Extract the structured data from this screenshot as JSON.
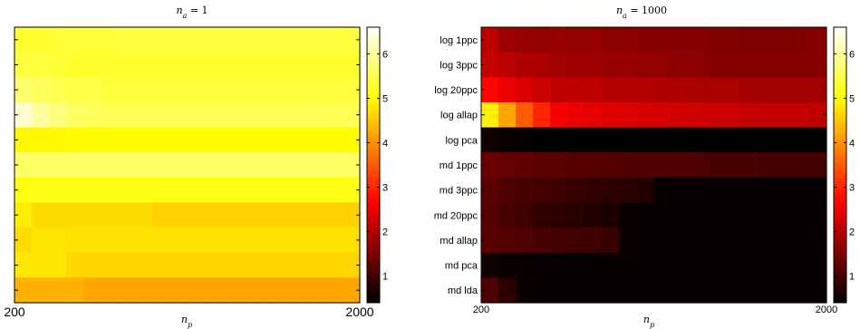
{
  "chart_data": [
    {
      "type": "heatmap",
      "title": "n_a = 1",
      "xlabel": "n_p",
      "ylabel": "",
      "x_tick_labels": [
        "200",
        "2000"
      ],
      "row_labels": [],
      "colormap": "hot",
      "color_range": [
        0.4,
        6.6
      ],
      "colorbar_ticks": [
        "1",
        "2",
        "3",
        "4",
        "5",
        "6"
      ],
      "rows": [
        [
          5.3,
          5.3,
          5.35,
          5.35,
          5.35,
          5.35,
          5.4,
          5.4,
          5.4,
          5.4,
          5.4,
          5.4,
          5.4,
          5.4,
          5.4,
          5.4,
          5.4,
          5.4,
          5.4,
          5.4
        ],
        [
          5.4,
          5.4,
          5.35,
          5.3,
          5.3,
          5.3,
          5.3,
          5.3,
          5.3,
          5.3,
          5.3,
          5.3,
          5.3,
          5.3,
          5.3,
          5.3,
          5.3,
          5.3,
          5.3,
          5.3
        ],
        [
          5.7,
          5.6,
          5.5,
          5.45,
          5.45,
          5.4,
          5.4,
          5.4,
          5.4,
          5.4,
          5.4,
          5.4,
          5.4,
          5.4,
          5.4,
          5.4,
          5.4,
          5.4,
          5.4,
          5.4
        ],
        [
          6.3,
          6.0,
          5.8,
          5.65,
          5.6,
          5.55,
          5.55,
          5.55,
          5.55,
          5.55,
          5.55,
          5.55,
          5.55,
          5.55,
          5.55,
          5.55,
          5.55,
          5.55,
          5.55,
          5.55
        ],
        [
          4.95,
          4.95,
          4.95,
          5.0,
          5.0,
          5.0,
          5.0,
          5.0,
          5.0,
          5.0,
          5.0,
          5.0,
          5.0,
          5.0,
          5.0,
          5.0,
          5.0,
          5.0,
          5.0,
          5.0
        ],
        [
          5.65,
          5.65,
          5.65,
          5.65,
          5.65,
          5.65,
          5.65,
          5.65,
          5.65,
          5.65,
          5.65,
          5.65,
          5.65,
          5.65,
          5.65,
          5.65,
          5.65,
          5.65,
          5.65,
          5.65
        ],
        [
          5.1,
          5.15,
          5.15,
          5.15,
          5.15,
          5.15,
          5.15,
          5.15,
          5.15,
          5.15,
          5.15,
          5.15,
          5.15,
          5.15,
          5.15,
          5.15,
          5.15,
          5.15,
          5.15,
          5.15
        ],
        [
          4.85,
          4.7,
          4.7,
          4.7,
          4.7,
          4.7,
          4.7,
          4.7,
          4.6,
          4.6,
          4.6,
          4.6,
          4.6,
          4.6,
          4.6,
          4.6,
          4.6,
          4.6,
          4.6,
          4.6
        ],
        [
          4.7,
          4.8,
          4.8,
          4.75,
          4.75,
          4.75,
          4.75,
          4.75,
          4.75,
          4.75,
          4.75,
          4.75,
          4.75,
          4.75,
          4.75,
          4.75,
          4.75,
          4.75,
          4.75,
          4.75
        ],
        [
          4.8,
          4.8,
          4.8,
          4.65,
          4.65,
          4.65,
          4.65,
          4.65,
          4.65,
          4.65,
          4.65,
          4.65,
          4.65,
          4.65,
          4.65,
          4.65,
          4.65,
          4.65,
          4.65,
          4.65
        ],
        [
          4.3,
          4.3,
          4.3,
          4.3,
          4.2,
          4.2,
          4.2,
          4.2,
          4.2,
          4.2,
          4.2,
          4.2,
          4.2,
          4.2,
          4.2,
          4.2,
          4.2,
          4.2,
          4.2,
          4.2
        ]
      ]
    },
    {
      "type": "heatmap",
      "title": "n_a = 1000",
      "xlabel": "n_p",
      "ylabel": "",
      "x_tick_labels": [
        "200",
        "2000"
      ],
      "row_labels": [
        "log 1ppc",
        "log 3ppc",
        "log 20ppc",
        "log allap",
        "log pca",
        "md 1ppc",
        "md 3ppc",
        "md 20ppc",
        "md allap",
        "md pca",
        "md lda"
      ],
      "colormap": "hot",
      "color_range": [
        0.4,
        6.6
      ],
      "colorbar_ticks": [
        "1",
        "2",
        "3",
        "4",
        "5",
        "6"
      ],
      "rows": [
        [
          2.05,
          1.8,
          1.75,
          1.7,
          1.75,
          1.7,
          1.7,
          1.65,
          1.65,
          1.6,
          1.6,
          1.6,
          1.6,
          1.55,
          1.55,
          1.5,
          1.5,
          1.5,
          1.55,
          1.6
        ],
        [
          2.15,
          2.05,
          1.95,
          1.9,
          1.85,
          1.8,
          1.8,
          1.75,
          1.75,
          1.7,
          1.7,
          1.65,
          1.65,
          1.6,
          1.6,
          1.6,
          1.6,
          1.6,
          1.6,
          1.6
        ],
        [
          2.7,
          2.5,
          2.35,
          2.2,
          2.1,
          2.1,
          2.05,
          2.0,
          2.0,
          2.0,
          1.95,
          1.95,
          1.9,
          1.9,
          1.9,
          1.85,
          1.85,
          1.85,
          1.85,
          1.85
        ],
        [
          4.9,
          4.2,
          3.5,
          3.0,
          2.6,
          2.5,
          2.45,
          2.4,
          2.35,
          2.3,
          2.3,
          2.25,
          2.25,
          2.2,
          2.2,
          2.15,
          2.15,
          2.15,
          2.15,
          2.1
        ],
        [
          0.55,
          0.5,
          0.45,
          0.4,
          0.4,
          0.4,
          0.4,
          0.4,
          0.4,
          0.4,
          0.4,
          0.4,
          0.4,
          0.4,
          0.4,
          0.4,
          0.4,
          0.4,
          0.4,
          0.4
        ],
        [
          1.35,
          1.3,
          1.25,
          1.2,
          1.2,
          1.15,
          1.15,
          1.15,
          1.1,
          1.1,
          1.1,
          1.1,
          1.1,
          1.05,
          1.05,
          1.05,
          1.0,
          1.0,
          1.0,
          1.0
        ],
        [
          1.2,
          1.1,
          1.05,
          1.0,
          0.95,
          0.9,
          0.85,
          0.8,
          0.75,
          0.7,
          0.45,
          0.45,
          0.45,
          0.45,
          0.45,
          0.45,
          0.45,
          0.45,
          0.45,
          0.45
        ],
        [
          1.15,
          1.05,
          0.95,
          0.85,
          0.8,
          0.75,
          0.7,
          0.65,
          0.5,
          0.45,
          0.45,
          0.45,
          0.45,
          0.45,
          0.45,
          0.45,
          0.45,
          0.45,
          0.45,
          0.45
        ],
        [
          1.2,
          1.15,
          1.1,
          1.05,
          1.0,
          0.95,
          0.95,
          0.9,
          0.5,
          0.45,
          0.45,
          0.45,
          0.45,
          0.45,
          0.45,
          0.45,
          0.45,
          0.45,
          0.45,
          0.45
        ],
        [
          0.55,
          0.5,
          0.45,
          0.45,
          0.45,
          0.45,
          0.45,
          0.45,
          0.45,
          0.45,
          0.45,
          0.45,
          0.45,
          0.45,
          0.45,
          0.45,
          0.45,
          0.45,
          0.45,
          0.45
        ],
        [
          1.1,
          0.8,
          0.5,
          0.45,
          0.45,
          0.45,
          0.45,
          0.45,
          0.45,
          0.45,
          0.45,
          0.45,
          0.45,
          0.45,
          0.45,
          0.45,
          0.45,
          0.45,
          0.45,
          0.45
        ]
      ]
    }
  ]
}
